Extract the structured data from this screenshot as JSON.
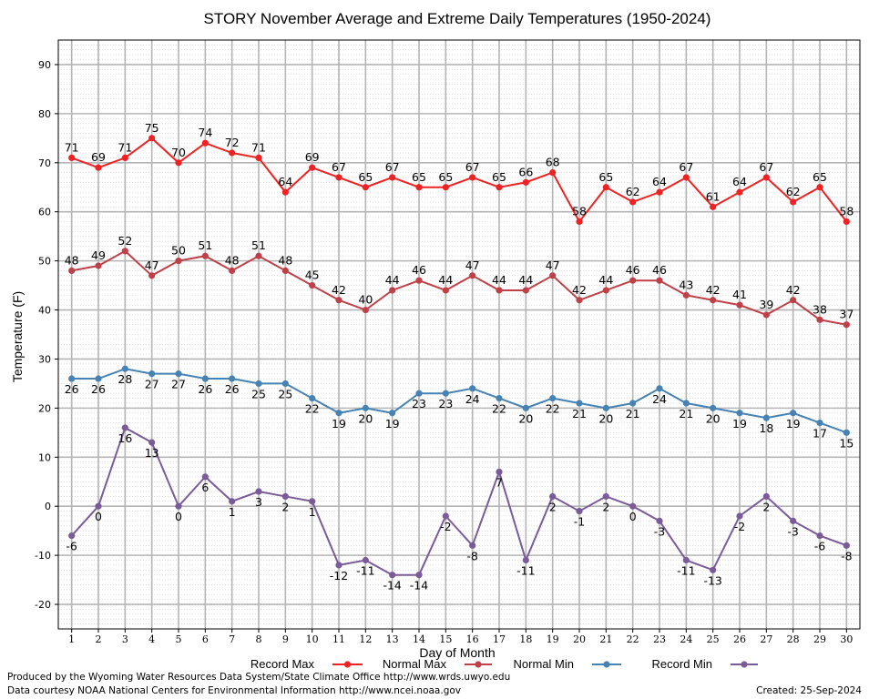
{
  "chart_data": {
    "type": "line",
    "title": "STORY November Average and Extreme Daily Temperatures (1950-2024)",
    "xlabel": "Day of Month",
    "ylabel": "Temperature (F)",
    "xlim": [
      0.5,
      30.5
    ],
    "ylim": [
      -25,
      95
    ],
    "y_ticks": [
      -20,
      -10,
      0,
      10,
      20,
      30,
      40,
      50,
      60,
      70,
      80,
      90
    ],
    "x": [
      1,
      2,
      3,
      4,
      5,
      6,
      7,
      8,
      9,
      10,
      11,
      12,
      13,
      14,
      15,
      16,
      17,
      18,
      19,
      20,
      21,
      22,
      23,
      24,
      25,
      26,
      27,
      28,
      29,
      30
    ],
    "grid": true,
    "legend_position": "bottom",
    "series": [
      {
        "name": "Record Max",
        "color": "#ee2222",
        "label_pos": "above",
        "values": [
          71,
          69,
          71,
          75,
          70,
          74,
          72,
          71,
          64,
          69,
          67,
          65,
          67,
          65,
          65,
          67,
          65,
          66,
          68,
          58,
          65,
          62,
          64,
          67,
          61,
          64,
          67,
          62,
          65,
          58
        ]
      },
      {
        "name": "Normal Max",
        "color": "#c04048",
        "label_pos": "above",
        "values": [
          48,
          49,
          52,
          47,
          50,
          51,
          48,
          51,
          48,
          45,
          42,
          40,
          44,
          46,
          44,
          47,
          44,
          44,
          47,
          42,
          44,
          46,
          46,
          43,
          42,
          41,
          39,
          42,
          38,
          37
        ]
      },
      {
        "name": "Normal Min",
        "color": "#4682b4",
        "label_pos": "below",
        "values": [
          26,
          26,
          28,
          27,
          27,
          26,
          26,
          25,
          25,
          22,
          19,
          20,
          19,
          23,
          23,
          24,
          22,
          20,
          22,
          21,
          20,
          21,
          24,
          21,
          20,
          19,
          18,
          19,
          17,
          15
        ]
      },
      {
        "name": "Record Min",
        "color": "#7b5a9a",
        "label_pos": "below",
        "values": [
          -6,
          0,
          16,
          13,
          0,
          6,
          1,
          3,
          2,
          1,
          -12,
          -11,
          -14,
          -14,
          -2,
          -8,
          7,
          -11,
          2,
          -1,
          2,
          0,
          -3,
          -11,
          -13,
          -2,
          2,
          -3,
          -6,
          -8
        ]
      }
    ]
  },
  "footer": {
    "credit_line1": "Produced by the Wyoming Water Resources Data System/State Climate Office http://www.wrds.uwyo.edu",
    "credit_line2": "Data courtesy NOAA National Centers for Environmental Information http://www.ncei.noaa.gov",
    "created": "Created:  25-Sep-2024"
  }
}
